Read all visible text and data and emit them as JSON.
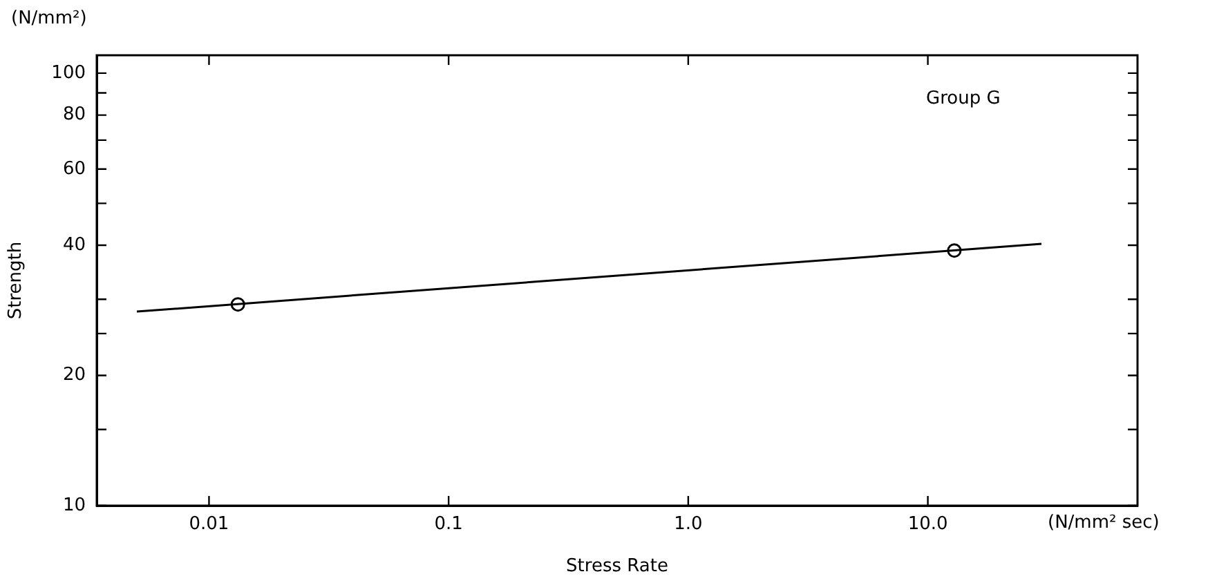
{
  "chart_data": {
    "type": "scatter",
    "xlabel": "Stress Rate",
    "ylabel": "Strength",
    "annotations": [
      "(N/mm²)",
      "(N/mm² sec)",
      "Group G"
    ],
    "log": "xy",
    "grid": false,
    "legend": false,
    "xlim": [
      0.0034,
      75
    ],
    "xticks": [
      0.01,
      0.1,
      {
        "value": 1,
        "label": "1.0"
      },
      {
        "value": 10,
        "label": "10.0"
      }
    ],
    "ylim": [
      10,
      110
    ],
    "yticks": [
      10,
      {
        "value": 15,
        "label": null
      },
      20,
      {
        "value": 25,
        "label": null
      },
      {
        "value": 30,
        "label": null
      },
      40,
      {
        "value": 50,
        "label": null
      },
      60,
      {
        "value": 70,
        "label": null
      },
      80,
      {
        "value": 90,
        "label": null
      },
      100
    ],
    "series": [
      {
        "type": "line",
        "x": [
          0.005,
          29.8
        ],
        "values": [
          28.1,
          40.3
        ],
        "color": "#000000",
        "marker": "none",
        "line_style": "solid"
      },
      {
        "type": "scatter",
        "x": [
          0.0132,
          12.9
        ],
        "values": [
          29.2,
          38.9
        ],
        "color": "#000000",
        "marker": "circle"
      }
    ]
  }
}
